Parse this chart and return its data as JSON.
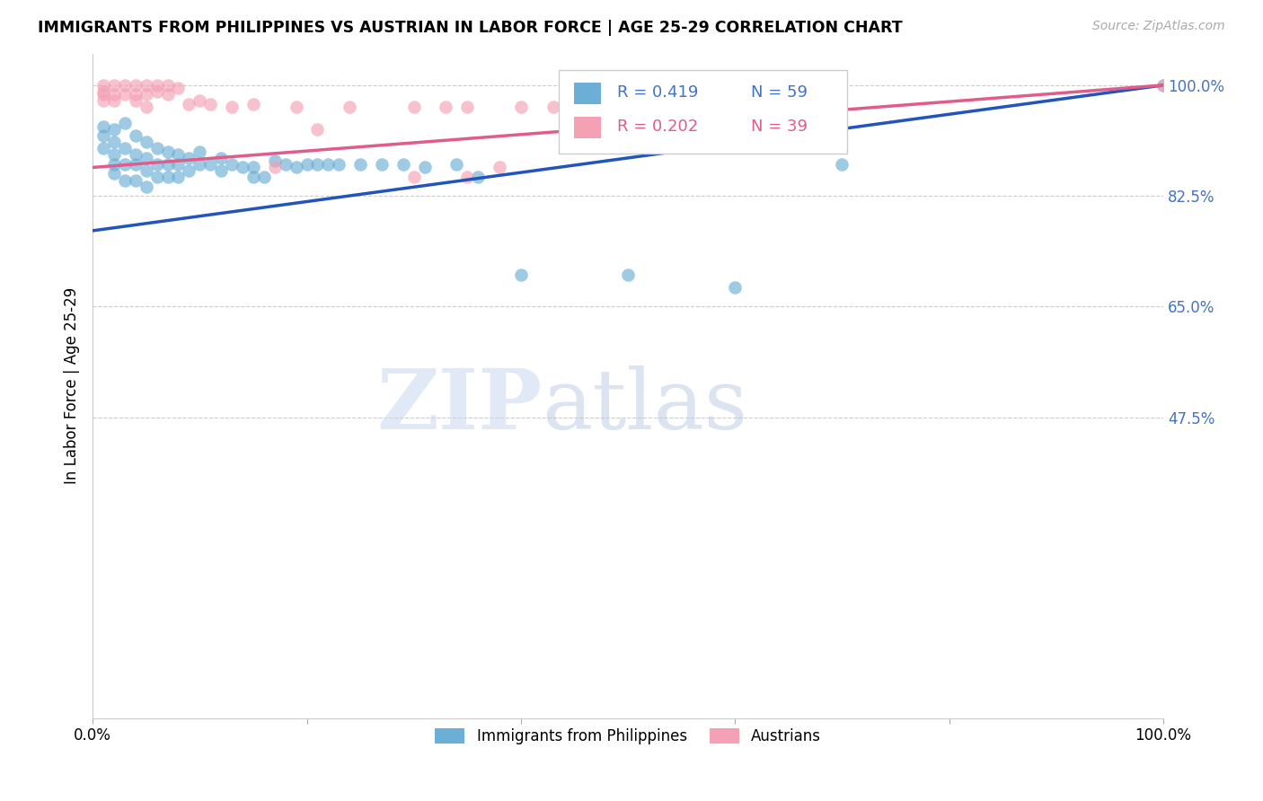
{
  "title": "IMMIGRANTS FROM PHILIPPINES VS AUSTRIAN IN LABOR FORCE | AGE 25-29 CORRELATION CHART",
  "source": "Source: ZipAtlas.com",
  "ylabel": "In Labor Force | Age 25-29",
  "ytick_labels": [
    "100.0%",
    "82.5%",
    "65.0%",
    "47.5%"
  ],
  "ytick_values": [
    1.0,
    0.825,
    0.65,
    0.475
  ],
  "xlim": [
    0.0,
    1.0
  ],
  "ylim": [
    0.0,
    1.05
  ],
  "legend_blue_r": "R = 0.419",
  "legend_blue_n": "N = 59",
  "legend_pink_r": "R = 0.202",
  "legend_pink_n": "N = 39",
  "legend_label_blue": "Immigrants from Philippines",
  "legend_label_pink": "Austrians",
  "blue_color": "#6baed6",
  "pink_color": "#f4a0b5",
  "trendline_blue": "#2255bb",
  "trendline_pink": "#e05c8a",
  "blue_scatter_x": [
    0.01,
    0.01,
    0.01,
    0.02,
    0.02,
    0.02,
    0.02,
    0.02,
    0.03,
    0.03,
    0.03,
    0.03,
    0.04,
    0.04,
    0.04,
    0.04,
    0.05,
    0.05,
    0.05,
    0.05,
    0.06,
    0.06,
    0.06,
    0.07,
    0.07,
    0.07,
    0.08,
    0.08,
    0.08,
    0.09,
    0.09,
    0.1,
    0.1,
    0.11,
    0.12,
    0.12,
    0.13,
    0.14,
    0.15,
    0.15,
    0.16,
    0.17,
    0.18,
    0.19,
    0.2,
    0.21,
    0.22,
    0.23,
    0.25,
    0.27,
    0.29,
    0.31,
    0.34,
    0.36,
    0.4,
    0.5,
    0.6,
    0.7,
    1.0
  ],
  "blue_scatter_y": [
    0.935,
    0.92,
    0.9,
    0.93,
    0.91,
    0.89,
    0.875,
    0.86,
    0.94,
    0.9,
    0.875,
    0.85,
    0.92,
    0.89,
    0.875,
    0.85,
    0.91,
    0.885,
    0.865,
    0.84,
    0.9,
    0.875,
    0.855,
    0.895,
    0.875,
    0.855,
    0.89,
    0.875,
    0.855,
    0.885,
    0.865,
    0.895,
    0.875,
    0.875,
    0.885,
    0.865,
    0.875,
    0.87,
    0.87,
    0.855,
    0.855,
    0.88,
    0.875,
    0.87,
    0.875,
    0.875,
    0.875,
    0.875,
    0.875,
    0.875,
    0.875,
    0.87,
    0.875,
    0.855,
    0.7,
    0.7,
    0.68,
    0.875,
    1.0
  ],
  "pink_scatter_x": [
    0.01,
    0.01,
    0.01,
    0.01,
    0.02,
    0.02,
    0.02,
    0.03,
    0.03,
    0.04,
    0.04,
    0.04,
    0.05,
    0.05,
    0.05,
    0.06,
    0.06,
    0.07,
    0.07,
    0.08,
    0.09,
    0.1,
    0.11,
    0.13,
    0.15,
    0.17,
    0.19,
    0.21,
    0.24,
    0.3,
    0.3,
    0.33,
    0.35,
    0.4,
    0.43,
    0.45,
    0.35,
    0.38,
    1.0
  ],
  "pink_scatter_y": [
    1.0,
    0.99,
    0.985,
    0.975,
    1.0,
    0.985,
    0.975,
    1.0,
    0.985,
    1.0,
    0.985,
    0.975,
    1.0,
    0.985,
    0.965,
    1.0,
    0.99,
    1.0,
    0.985,
    0.995,
    0.97,
    0.975,
    0.97,
    0.965,
    0.97,
    0.87,
    0.965,
    0.93,
    0.965,
    0.965,
    0.855,
    0.965,
    0.965,
    0.965,
    0.965,
    0.965,
    0.855,
    0.87,
    1.0
  ],
  "watermark_zip": "ZIP",
  "watermark_atlas": "atlas",
  "grid_color": "#cccccc",
  "background_color": "#ffffff"
}
